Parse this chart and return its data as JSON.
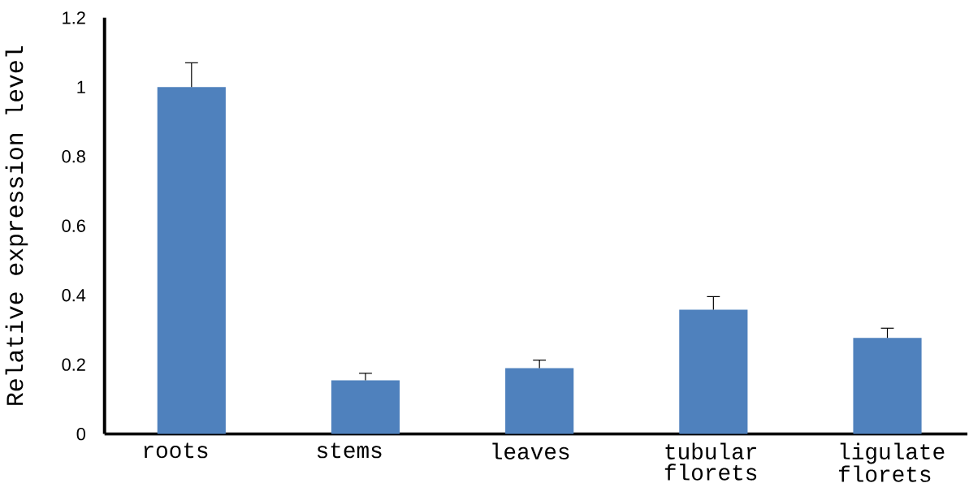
{
  "chart_data": {
    "type": "bar",
    "ylabel": "Relative expression level",
    "categories": [
      "roots",
      "stems",
      "leaves",
      "tubular florets",
      "ligulate florets"
    ],
    "values": [
      1.0,
      0.155,
      0.19,
      0.358,
      0.277
    ],
    "errors": [
      [
        1.0,
        1.07
      ],
      [
        0.155,
        0.175
      ],
      [
        0.19,
        0.213
      ],
      [
        0.358,
        0.396
      ],
      [
        0.277,
        0.305
      ]
    ],
    "color": "#4f81bd",
    "ylim": [
      0,
      1.2
    ],
    "yticks": [
      0,
      0.2,
      0.4,
      0.6,
      0.8,
      1,
      1.2
    ]
  }
}
